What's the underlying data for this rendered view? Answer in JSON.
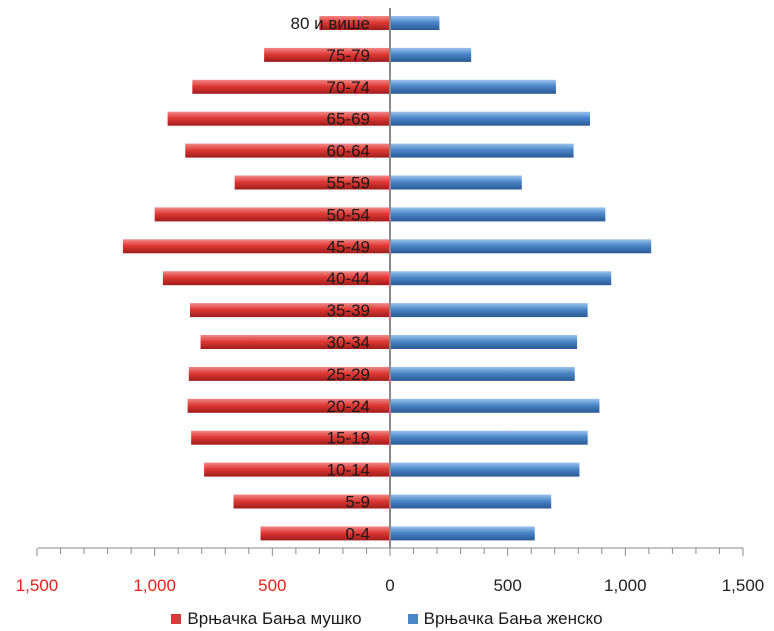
{
  "chart_data": {
    "type": "bar",
    "orientation": "horizontal",
    "title": "",
    "xlabel": "",
    "ylabel": "",
    "xlim": [
      -1500,
      1500
    ],
    "x_ticks": [
      {
        "value": -1500,
        "label": "1,500",
        "color": "#e8221d"
      },
      {
        "value": -1000,
        "label": "1,000",
        "color": "#e8221d"
      },
      {
        "value": -500,
        "label": "500",
        "color": "#e8221d"
      },
      {
        "value": 0,
        "label": "0",
        "color": "#222222"
      },
      {
        "value": 500,
        "label": "500",
        "color": "#222222"
      },
      {
        "value": 1000,
        "label": "1,000",
        "color": "#222222"
      },
      {
        "value": 1500,
        "label": "1,500",
        "color": "#222222"
      }
    ],
    "categories": [
      "80 и више",
      "75-79",
      "70-74",
      "65-69",
      "60-64",
      "55-59",
      "50-54",
      "45-49",
      "40-44",
      "35-39",
      "30-34",
      "25-29",
      "20-24",
      "15-19",
      "10-14",
      "5-9",
      "0-4"
    ],
    "series": [
      {
        "name": "Врњачка Бања мушко",
        "color": "#d63b3b",
        "values": [
          300,
          535,
          840,
          945,
          870,
          660,
          1000,
          1135,
          965,
          850,
          805,
          855,
          860,
          845,
          790,
          665,
          550
        ]
      },
      {
        "name": "Врњачка Бања женско",
        "color": "#4a86c8",
        "values": [
          210,
          345,
          705,
          850,
          780,
          560,
          915,
          1110,
          940,
          840,
          795,
          785,
          890,
          840,
          805,
          685,
          615
        ]
      }
    ],
    "grid": false,
    "legend_position": "bottom"
  }
}
